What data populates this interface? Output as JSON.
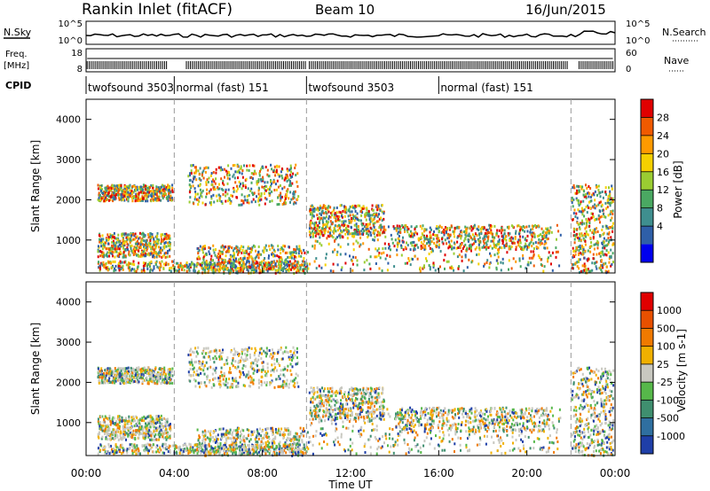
{
  "header": {
    "title": "Rankin Inlet (fitACF)",
    "beam": "Beam 10",
    "date": "16/Jun/2015"
  },
  "params": {
    "nsky_label": "N.Sky",
    "nsearch_label": "N.Search",
    "freq_label": "Freq.",
    "freq_unit": "[MHz]",
    "nave_label": "Nave",
    "cpid_label": "CPID",
    "noise_ticks_left": [
      "10^5",
      "10^0"
    ],
    "noise_ticks_right": [
      "10^5",
      "10^0"
    ],
    "freq_ticks": [
      "18",
      "8"
    ],
    "nave_ticks": [
      "60",
      "0"
    ]
  },
  "cpid_segments": [
    {
      "label": "twofsound 3503",
      "start_h": 0.0,
      "end_h": 4.0
    },
    {
      "label": "normal (fast) 151",
      "start_h": 4.0,
      "end_h": 10.0
    },
    {
      "label": "twofsound 3503",
      "start_h": 10.0,
      "end_h": 16.0
    },
    {
      "label": "normal (fast) 151",
      "start_h": 16.0,
      "end_h": 22.0
    }
  ],
  "chart_data": [
    {
      "type": "heatmap",
      "name": "power-panel",
      "ylabel": "Slant Range [km]",
      "y_ticks": [
        "1000",
        "2000",
        "3000",
        "4000"
      ],
      "y_values": [
        1000,
        2000,
        3000,
        4000
      ],
      "ylim": [
        180,
        4500
      ],
      "colorbar_label": "Power [dB]",
      "colorbar_ticks": [
        "28",
        "24",
        "20",
        "16",
        "12",
        "8",
        "4"
      ],
      "colorbar_colors": [
        "#0000ee",
        "#2f5fa8",
        "#3f8f8f",
        "#4aa862",
        "#9acd32",
        "#f5d000",
        "#ff9a00",
        "#f05a00",
        "#e00000"
      ],
      "dashed_marks_h": [
        4.0,
        10.0,
        22.0
      ]
    },
    {
      "type": "heatmap",
      "name": "velocity-panel",
      "ylabel": "Slant Range [km]",
      "y_ticks": [
        "1000",
        "2000",
        "3000",
        "4000"
      ],
      "y_values": [
        1000,
        2000,
        3000,
        4000
      ],
      "ylim": [
        180,
        4500
      ],
      "colorbar_label": "Velocity [m s-1]",
      "colorbar_ticks": [
        "1000",
        "500",
        "100",
        "25",
        "-25",
        "-100",
        "-500",
        "-1000"
      ],
      "colorbar_colors": [
        "#1f3fa8",
        "#2f6fa0",
        "#3f8f6f",
        "#56b84a",
        "#c8c8c0",
        "#f0b000",
        "#f07a00",
        "#e85000",
        "#e00000"
      ],
      "dashed_marks_h": [
        4.0,
        10.0,
        22.0
      ]
    }
  ],
  "xaxis": {
    "label": "Time UT",
    "ticks": [
      "00:00",
      "04:00",
      "08:00",
      "12:00",
      "16:00",
      "20:00",
      "00:00"
    ],
    "tick_hours": [
      0,
      4,
      8,
      12,
      16,
      20,
      24
    ],
    "range_h": [
      0,
      24
    ]
  }
}
